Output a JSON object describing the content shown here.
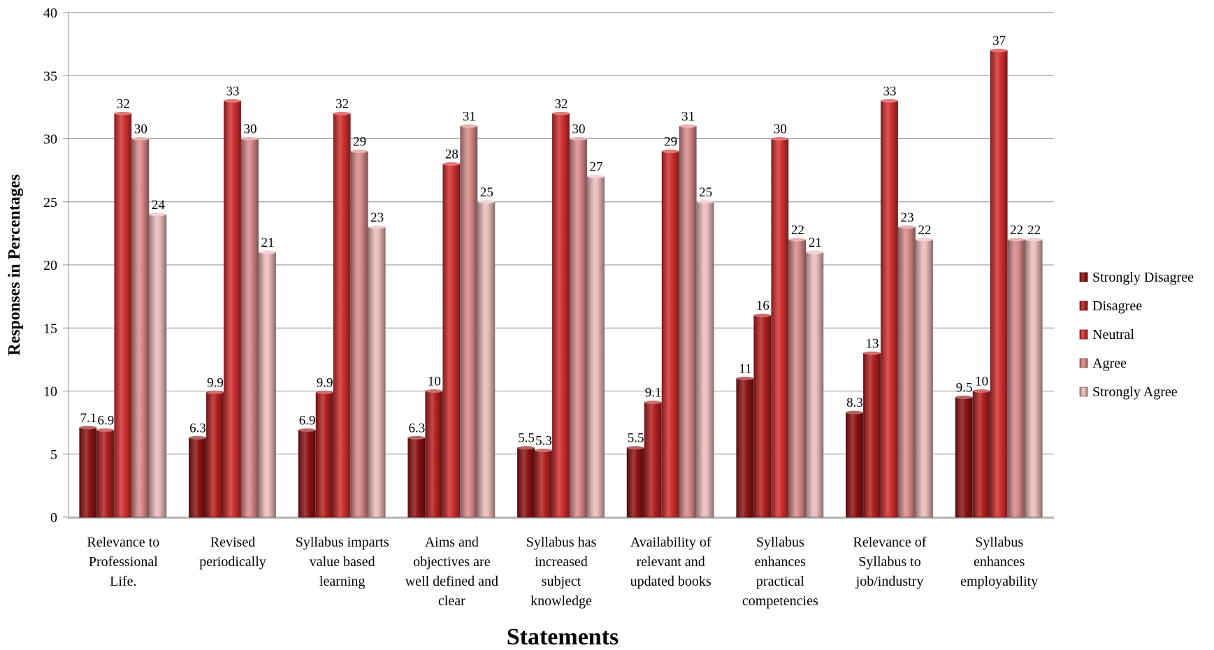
{
  "chart_data": {
    "type": "bar",
    "title": "",
    "xlabel": "Statements",
    "ylabel": "Responses in Percentages",
    "ylim": [
      0,
      40
    ],
    "yticks": [
      0,
      5,
      10,
      15,
      20,
      25,
      30,
      35,
      40
    ],
    "grid": true,
    "legend_position": "right",
    "categories": [
      "Relevance to Professional Life.",
      "Revised periodically",
      "Syllabus imparts value based learning",
      "Aims and objectives are well defined and clear",
      "Syllabus has increased subject knowledge",
      "Availability of relevant and updated books",
      "Syllabus enhances practical competencies",
      "Relevance of Syllabus to job/industry",
      "Syllabus enhances employability"
    ],
    "category_lines": [
      [
        "Relevance to",
        "Professional",
        "Life."
      ],
      [
        "Revised",
        "periodically"
      ],
      [
        "Syllabus imparts",
        "value based",
        "learning"
      ],
      [
        "Aims and",
        "objectives are",
        "well defined and",
        "clear"
      ],
      [
        "Syllabus has",
        "increased",
        "subject",
        "knowledge"
      ],
      [
        "Availability of",
        "relevant and",
        "updated books"
      ],
      [
        "Syllabus",
        "enhances",
        "practical",
        "competencies"
      ],
      [
        "Relevance of",
        "Syllabus to",
        "job/industry"
      ],
      [
        "Syllabus",
        "enhances",
        "employability"
      ]
    ],
    "series": [
      {
        "name": "Strongly Disagree",
        "color": "#8e1414",
        "values": [
          7.1,
          6.3,
          6.9,
          6.3,
          5.5,
          5.5,
          11,
          8.3,
          9.5
        ],
        "labels": [
          "7.1",
          "6.3",
          "6.9",
          "6.3",
          "5.5",
          "5.5",
          "11",
          "8.3",
          "9.5"
        ]
      },
      {
        "name": "Disagree",
        "color": "#b42121",
        "values": [
          6.9,
          9.9,
          9.9,
          10,
          5.3,
          9.1,
          16,
          13,
          10
        ],
        "labels": [
          "6.9",
          "9.9",
          "9.9",
          "10",
          "5.3",
          "9.1",
          "16",
          "13",
          "10"
        ]
      },
      {
        "name": "Neutral",
        "color": "#d23030",
        "values": [
          32,
          33,
          32,
          28,
          32,
          29,
          30,
          33,
          37
        ],
        "labels": [
          "32",
          "33",
          "32",
          "28",
          "32",
          "29",
          "30",
          "33",
          "37"
        ]
      },
      {
        "name": "Agree",
        "color": "#d98a8a",
        "values": [
          30,
          30,
          29,
          31,
          30,
          31,
          22,
          23,
          22
        ],
        "labels": [
          "30",
          "30",
          "29",
          "31",
          "30",
          "31",
          "22",
          "23",
          "22"
        ]
      },
      {
        "name": "Strongly Agree",
        "color": "#ebbcbc",
        "values": [
          24,
          21,
          23,
          25,
          27,
          25,
          21,
          22,
          22
        ],
        "labels": [
          "24",
          "21",
          "23",
          "25",
          "27",
          "25",
          "21",
          "22",
          "22"
        ]
      }
    ]
  }
}
